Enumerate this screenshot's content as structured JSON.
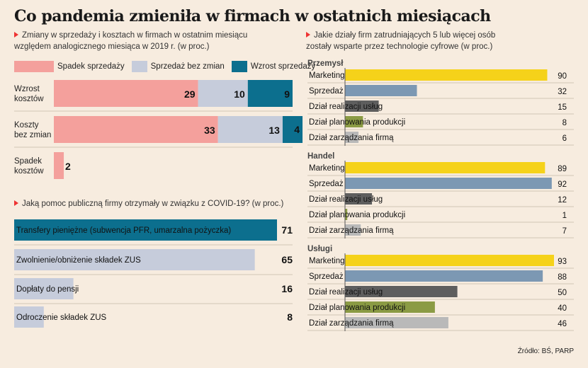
{
  "title": "Co pandemia zmieniła w firmach w ostatnich miesiącach",
  "source": "Źródło: BŚ, PARP",
  "colors": {
    "spadek": "#f4a09c",
    "bez_zmian": "#c6ccdb",
    "wzrost": "#0c6f8e",
    "accent": "#e33"
  },
  "chart_data": [
    {
      "type": "bar",
      "stacked": true,
      "orientation": "horizontal",
      "subtitle": "Zmiany w sprzedaży i kosztach w firmach w ostatnim miesiącu względem analogicznego miesiąca w 2019 r. (w proc.)",
      "categories": [
        "Wzrost kosztów",
        "Koszty bez zmian",
        "Spadek kosztów"
      ],
      "series": [
        {
          "name": "Spadek sprzedaży",
          "values": [
            29,
            33,
            2
          ]
        },
        {
          "name": "Sprzedaż bez zmian",
          "values": [
            10,
            13,
            0
          ]
        },
        {
          "name": "Wzrost sprzedaży",
          "values": [
            9,
            4,
            0
          ]
        }
      ],
      "legend": "top-left"
    },
    {
      "type": "bar",
      "orientation": "horizontal",
      "subtitle": "Jaką pomoc publiczną firmy otrzymały w związku z COVID-19? (w proc.)",
      "categories": [
        "Transfery pieniężne (subwencja PFR, umarzalna pożyczka)",
        "Zwolnienie/obniżenie składek ZUS",
        "Dopłaty do pensji",
        "Odroczenie składek ZUS"
      ],
      "values": [
        71,
        65,
        16,
        8
      ]
    },
    {
      "type": "bar",
      "orientation": "horizontal",
      "subtitle": "Jakie działy firm zatrudniających 5 lub więcej osób zostały wsparte przez technologie cyfrowe (w proc.)",
      "groups": [
        {
          "name": "Przemysł",
          "categories": [
            "Marketing",
            "Sprzedaż",
            "Dział realizacji usług",
            "Dział planowania produkcji",
            "Dział zarządzania firmą"
          ],
          "values": [
            90,
            32,
            15,
            8,
            6
          ]
        },
        {
          "name": "Handel",
          "categories": [
            "Marketing",
            "Sprzedaż",
            "Dział realizacji usług",
            "Dział planowania produkcji",
            "Dział zarządzania firmą"
          ],
          "values": [
            89,
            92,
            12,
            1,
            7
          ]
        },
        {
          "name": "Usługi",
          "categories": [
            "Marketing",
            "Sprzedaż",
            "Dział realizacji usług",
            "Dział planowania produkcji",
            "Dział zarządzania firmą"
          ],
          "values": [
            93,
            88,
            50,
            40,
            46
          ]
        }
      ],
      "bar_colors": [
        "#f5d21a",
        "#7c98b3",
        "#5e5e5e",
        "#8b9b44",
        "#b9b9b9"
      ]
    }
  ]
}
